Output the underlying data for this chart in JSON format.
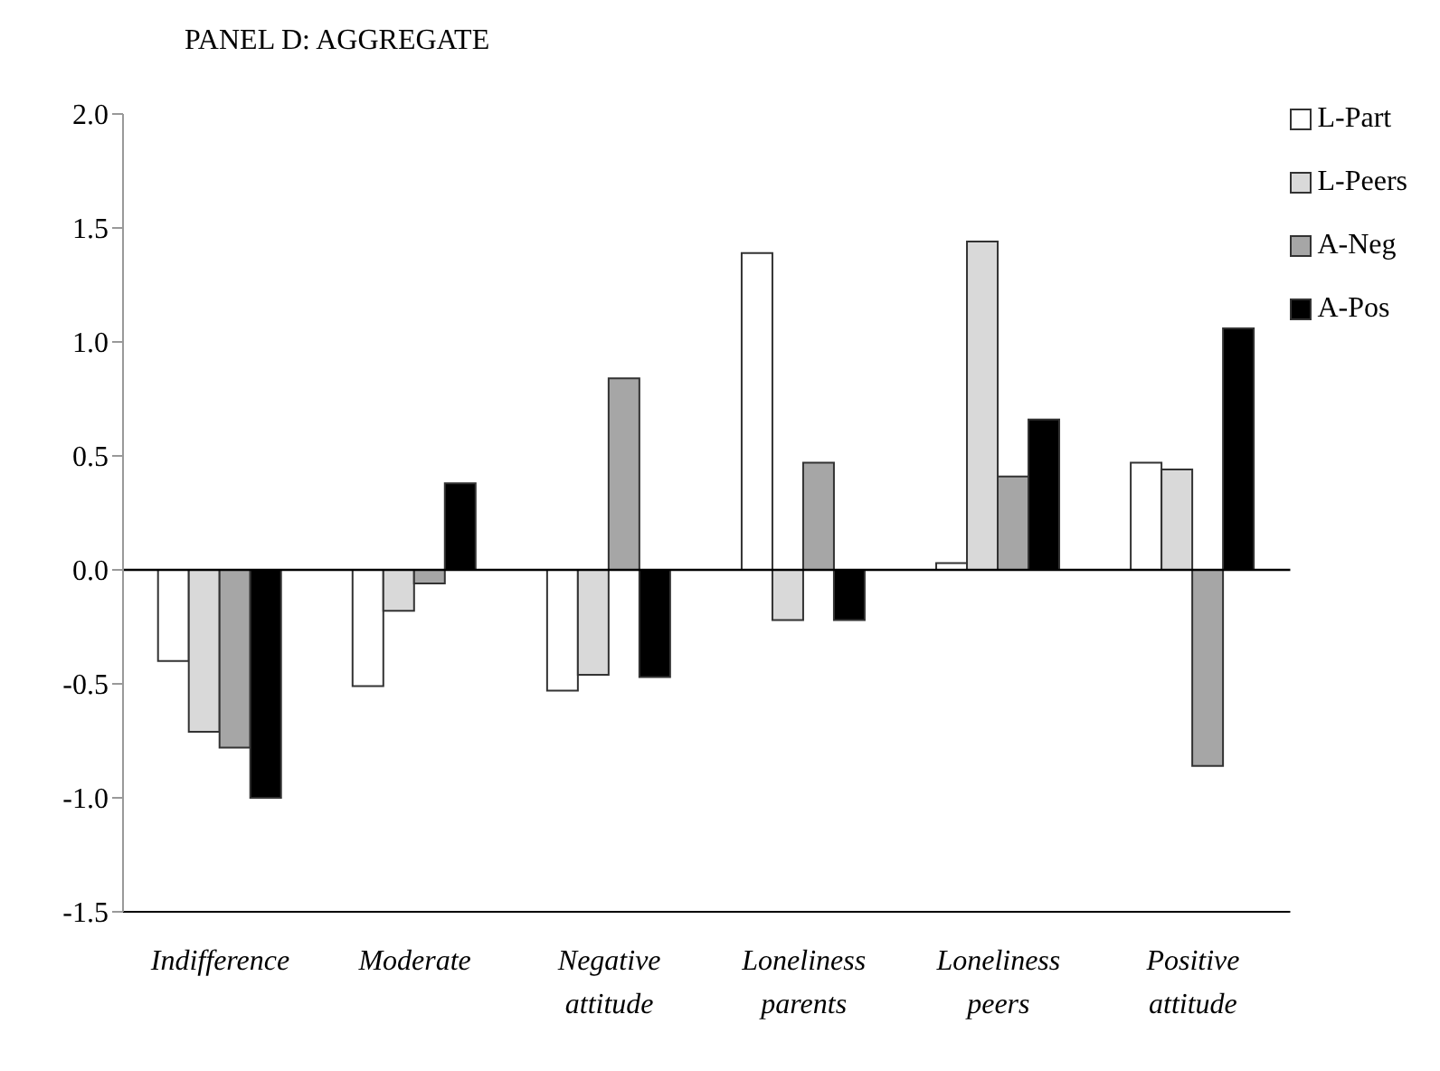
{
  "chart_data": {
    "type": "bar",
    "title": "PANEL D: AGGREGATE",
    "categories": [
      "Indifference",
      "Moderate",
      "Negative attitude",
      "Loneliness parents",
      "Loneliness peers",
      "Positive attitude"
    ],
    "series": [
      {
        "name": "L-Part",
        "color": "#ffffff",
        "values": [
          -0.4,
          -0.51,
          -0.53,
          1.39,
          0.03,
          0.47
        ]
      },
      {
        "name": "L-Peers",
        "color": "#d9d9d9",
        "values": [
          -0.71,
          -0.18,
          -0.46,
          -0.22,
          1.44,
          0.44
        ]
      },
      {
        "name": "A-Neg",
        "color": "#a6a6a6",
        "values": [
          -0.78,
          -0.06,
          0.84,
          0.47,
          0.41,
          -0.86
        ]
      },
      {
        "name": "A-Pos",
        "color": "#000000",
        "values": [
          -1.0,
          0.38,
          -0.47,
          -0.22,
          0.66,
          1.06
        ]
      }
    ],
    "ylim": [
      -1.5,
      2.0
    ],
    "yticks": [
      {
        "value": -1.5,
        "label": "-1.5"
      },
      {
        "value": -1.0,
        "label": "-1.0"
      },
      {
        "value": -0.5,
        "label": "-0.5"
      },
      {
        "value": 0,
        "label": "0.0"
      },
      {
        "value": 0.5,
        "label": "0.5"
      },
      {
        "value": 1.0,
        "label": "1.0"
      },
      {
        "value": 1.5,
        "label": "1.5"
      },
      {
        "value": 2.0,
        "label": "2.0"
      }
    ],
    "ref_lines": [
      {
        "axis": "y",
        "value": 0,
        "color": "#000000"
      }
    ],
    "grid": false,
    "legend": "top right"
  }
}
